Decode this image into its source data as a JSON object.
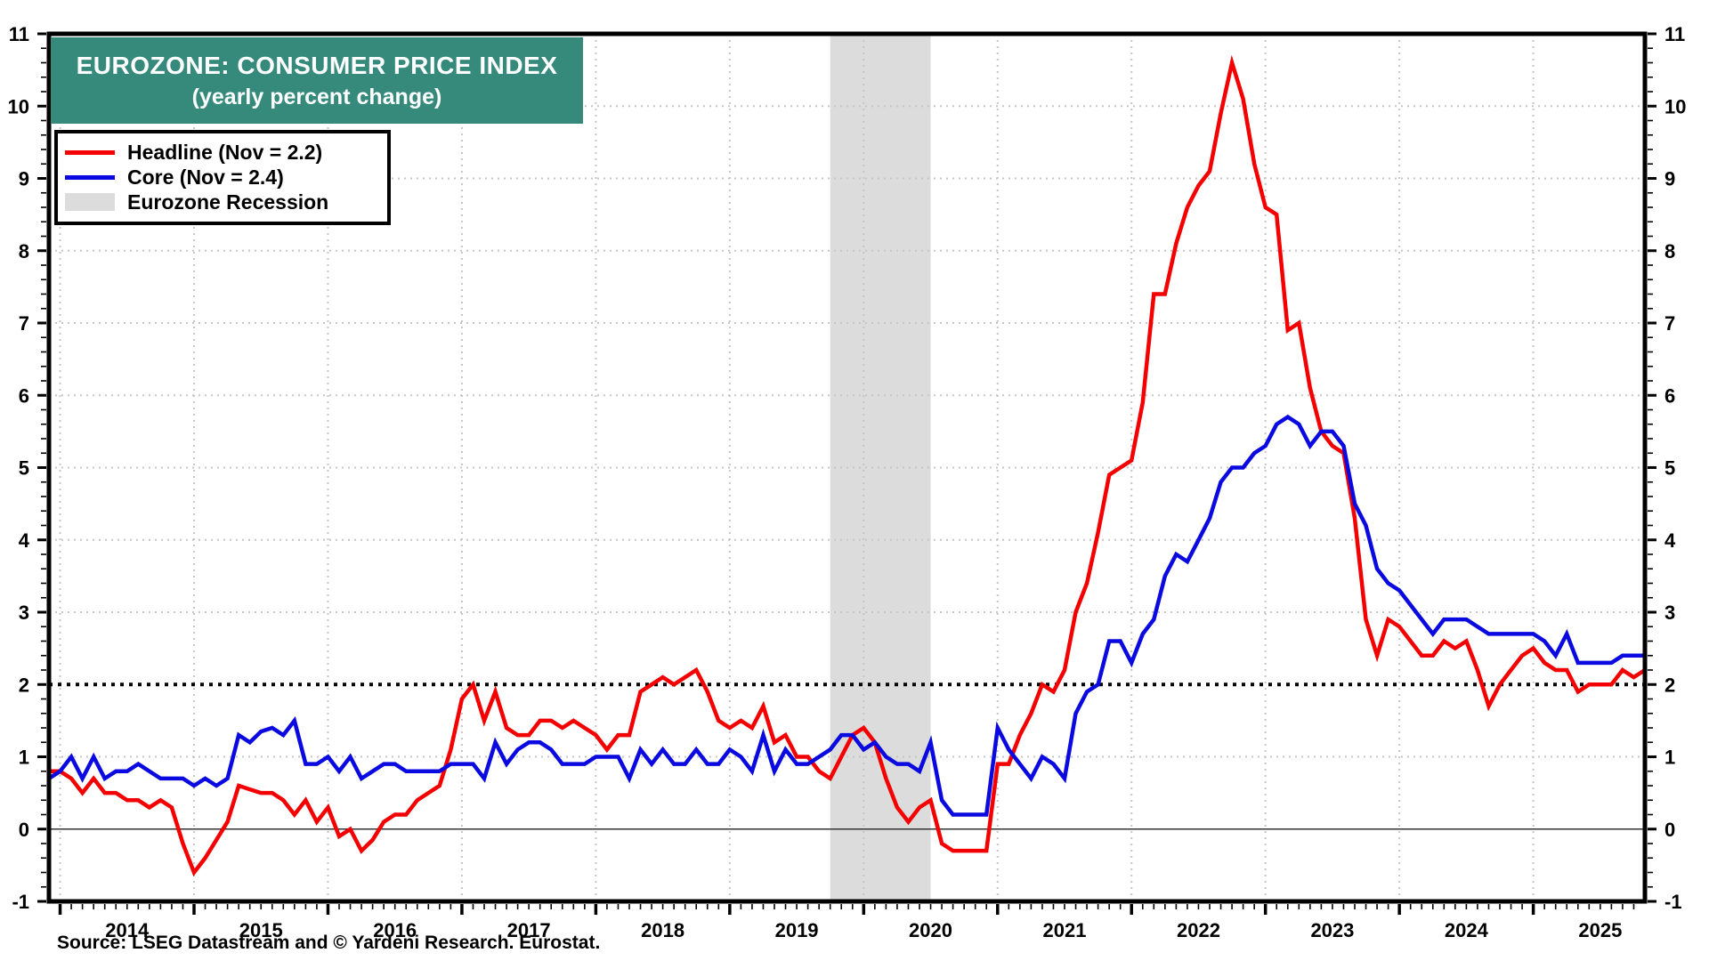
{
  "title": {
    "line1": "EUROZONE: CONSUMER PRICE INDEX",
    "line2": "(yearly percent change)"
  },
  "legend": {
    "headline_label": "Headline (Nov = 2.2)",
    "core_label": "Core (Nov = 2.4)",
    "recession_label": "Eurozone Recession"
  },
  "source": "Source: LSEG Datastream and © Yardeni Research. Eurostat.",
  "colors": {
    "headline": "#f40000",
    "core": "#0a0ae0",
    "recession_band": "#dcdcdc",
    "title_bg": "#358a7c",
    "grid_light": "#c6c6c6",
    "axis": "#000000",
    "zero_line": "#333333",
    "target_dotted": "#000000"
  },
  "chart_data": {
    "type": "line",
    "title": "EUROZONE: CONSUMER PRICE INDEX (yearly percent change)",
    "x_domain": {
      "start_year": 2013,
      "start_month": 12,
      "end_year": 2025,
      "end_month": 11
    },
    "ylim": [
      -1,
      11
    ],
    "y_major_step": 1,
    "y_minor_step": 0.2,
    "x_minor_step_months": 1,
    "grid": "dotted",
    "legend_position": "top-left",
    "y_tick_labels": [
      -1,
      0,
      1,
      2,
      3,
      4,
      5,
      6,
      7,
      8,
      9,
      10,
      11
    ],
    "x_year_labels": [
      2014,
      2015,
      2016,
      2017,
      2018,
      2019,
      2020,
      2021,
      2022,
      2023,
      2024,
      2025
    ],
    "target_line_y": 2,
    "zero_line_y": 0,
    "recession_bands": [
      {
        "from_year": 2019.75,
        "to_year": 2020.5
      }
    ],
    "series": [
      {
        "name": "Headline (Nov = 2.2)",
        "color_key": "headline",
        "values": [
          0.8,
          0.8,
          0.7,
          0.5,
          0.7,
          0.5,
          0.5,
          0.4,
          0.4,
          0.3,
          0.4,
          0.3,
          -0.2,
          -0.6,
          -0.4,
          -0.15,
          0.1,
          0.6,
          0.55,
          0.5,
          0.5,
          0.4,
          0.2,
          0.4,
          0.1,
          0.3,
          -0.1,
          0.0,
          -0.3,
          -0.15,
          0.1,
          0.2,
          0.2,
          0.4,
          0.5,
          0.6,
          1.1,
          1.8,
          2.0,
          1.5,
          1.9,
          1.4,
          1.3,
          1.3,
          1.5,
          1.5,
          1.4,
          1.5,
          1.4,
          1.3,
          1.1,
          1.3,
          1.3,
          1.9,
          2.0,
          2.1,
          2.0,
          2.1,
          2.2,
          1.9,
          1.5,
          1.4,
          1.5,
          1.4,
          1.7,
          1.2,
          1.3,
          1.0,
          1.0,
          0.8,
          0.7,
          1.0,
          1.3,
          1.4,
          1.2,
          0.7,
          0.3,
          0.1,
          0.3,
          0.4,
          -0.2,
          -0.3,
          -0.3,
          -0.3,
          -0.3,
          0.9,
          0.9,
          1.3,
          1.6,
          2.0,
          1.9,
          2.2,
          3.0,
          3.4,
          4.1,
          4.9,
          5.0,
          5.1,
          5.9,
          7.4,
          7.4,
          8.1,
          8.6,
          8.9,
          9.1,
          9.9,
          10.6,
          10.1,
          9.2,
          8.6,
          8.5,
          6.9,
          7.0,
          6.1,
          5.5,
          5.3,
          5.2,
          4.3,
          2.9,
          2.4,
          2.9,
          2.8,
          2.6,
          2.4,
          2.4,
          2.6,
          2.5,
          2.6,
          2.2,
          1.7,
          2.0,
          2.2,
          2.4,
          2.5,
          2.3,
          2.2,
          2.2,
          1.9,
          2.0,
          2.0,
          2.0,
          2.2,
          2.1,
          2.2
        ]
      },
      {
        "name": "Core (Nov = 2.4)",
        "color_key": "core",
        "values": [
          0.7,
          0.8,
          1.0,
          0.7,
          1.0,
          0.7,
          0.8,
          0.8,
          0.9,
          0.8,
          0.7,
          0.7,
          0.7,
          0.6,
          0.7,
          0.6,
          0.7,
          1.3,
          1.2,
          1.35,
          1.4,
          1.3,
          1.5,
          0.9,
          0.9,
          1.0,
          0.8,
          1.0,
          0.7,
          0.8,
          0.9,
          0.9,
          0.8,
          0.8,
          0.8,
          0.8,
          0.9,
          0.9,
          0.9,
          0.7,
          1.2,
          0.9,
          1.1,
          1.2,
          1.2,
          1.1,
          0.9,
          0.9,
          0.9,
          1.0,
          1.0,
          1.0,
          0.7,
          1.1,
          0.9,
          1.1,
          0.9,
          0.9,
          1.1,
          0.9,
          0.9,
          1.1,
          1.0,
          0.8,
          1.3,
          0.8,
          1.1,
          0.9,
          0.9,
          1.0,
          1.1,
          1.3,
          1.3,
          1.1,
          1.2,
          1.0,
          0.9,
          0.9,
          0.8,
          1.2,
          0.4,
          0.2,
          0.2,
          0.2,
          0.2,
          1.4,
          1.1,
          0.9,
          0.7,
          1.0,
          0.9,
          0.7,
          1.6,
          1.9,
          2.0,
          2.6,
          2.6,
          2.3,
          2.7,
          2.9,
          3.5,
          3.8,
          3.7,
          4.0,
          4.3,
          4.8,
          5.0,
          5.0,
          5.2,
          5.3,
          5.6,
          5.7,
          5.6,
          5.3,
          5.5,
          5.5,
          5.3,
          4.5,
          4.2,
          3.6,
          3.4,
          3.3,
          3.1,
          2.9,
          2.7,
          2.9,
          2.9,
          2.9,
          2.8,
          2.7,
          2.7,
          2.7,
          2.7,
          2.7,
          2.6,
          2.4,
          2.7,
          2.3,
          2.3,
          2.3,
          2.3,
          2.4,
          2.4,
          2.4
        ]
      }
    ]
  }
}
